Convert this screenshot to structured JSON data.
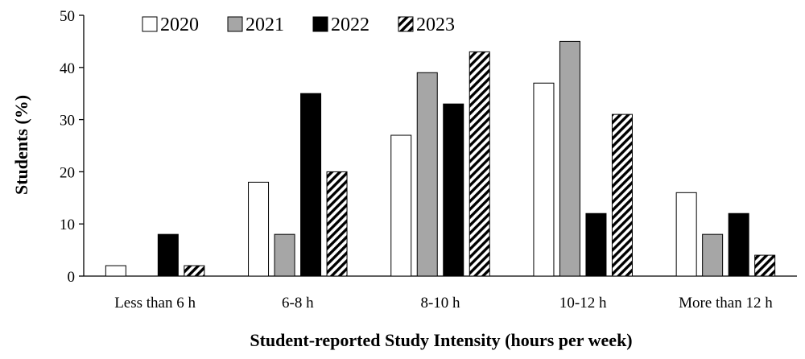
{
  "chart_data": {
    "type": "bar",
    "title": "",
    "xlabel": "Student-reported Study Intensity (hours per week)",
    "ylabel": "Students (%)",
    "ylim": [
      0,
      50
    ],
    "yticks": [
      0,
      10,
      20,
      30,
      40,
      50
    ],
    "grid": false,
    "legend_position": "top",
    "categories": [
      "Less than 6 h",
      "6-8 h",
      "8-10 h",
      "10-12 h",
      "More than 12 h"
    ],
    "series": [
      {
        "name": "2020",
        "fill": "white",
        "color": "#ffffff",
        "values": [
          2,
          18,
          27,
          37,
          16
        ]
      },
      {
        "name": "2021",
        "fill": "gray",
        "color": "#a6a6a6",
        "values": [
          0,
          8,
          39,
          45,
          8
        ]
      },
      {
        "name": "2022",
        "fill": "black",
        "color": "#000000",
        "values": [
          8,
          35,
          33,
          12,
          12
        ]
      },
      {
        "name": "2023",
        "fill": "hatched",
        "color": "#000000",
        "values": [
          2,
          20,
          43,
          31,
          4
        ]
      }
    ]
  }
}
